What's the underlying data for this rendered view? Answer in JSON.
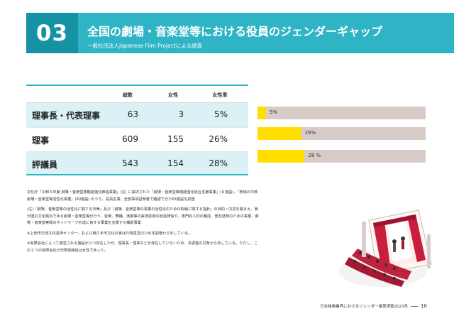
{
  "header": {
    "number": "03",
    "title": "全国の劇場・音楽堂等における役員のジェンダーギャップ",
    "subtitle": "一般社団法人Japanese Film Projectによる調査"
  },
  "table": {
    "columns": [
      "総数",
      "女性",
      "女性率"
    ],
    "rows": [
      {
        "label": "理事長・代表理事",
        "total": "63",
        "female": "3",
        "rate": "5%"
      },
      {
        "label": "理事",
        "total": "609",
        "female": "155",
        "rate": "26%"
      },
      {
        "label": "評議員",
        "total": "543",
        "female": "154",
        "rate": "28%"
      }
    ]
  },
  "bars": [
    {
      "label": "5%",
      "fraction": 0.05
    },
    {
      "label": "26%",
      "fraction": 0.26
    },
    {
      "label": "28 %",
      "fraction": 0.28
    }
  ],
  "notes": [
    "文化庁「令和５年度 劇場・音楽堂等機能強化推進事業」(注) に採択された「劇場・音楽堂等機能強化総合支援事業」(８施設)、「地域の中核劇場・音楽堂等活性化事業」(60施設) のうち、役員名簿、全部事項証明書で確認できた63施設を調査",
    "(注)「劇場、音楽堂等の活性化に関する法律」及び「劇場、音楽堂等の事業の活性化のための取組に関する指針」の目的・内容を踏まえ、我が国の文化拠点である劇場・音楽堂等が行う、音楽、舞踊、演劇等の実演芸術の創造発信や、専門的人材の養成、普及啓発のための事業、劇場・音楽堂等間のネットワーク形成に資する事業を支援する補助事業",
    "※上田市交流文化芸術センター、および奥久手市文化の家は行政直営のため本調査から外している。",
    "※有限会社によって運営される施設が２つ存在したが、理事長・理事などが存在していないため、本調査の対象から外している。ただし、この２つの有限会社の代表取締役は女性であった。"
  ],
  "footer": {
    "text": "日本映画業界におけるジェンダー格差調査2023冬",
    "page": "10"
  },
  "colors": {
    "accent": "#2fb4c6",
    "accent_dark": "#1592a3",
    "bar_fill": "#ffde00",
    "bar_bg": "#d9cbc7"
  },
  "illustration": "theater-stage-icon"
}
